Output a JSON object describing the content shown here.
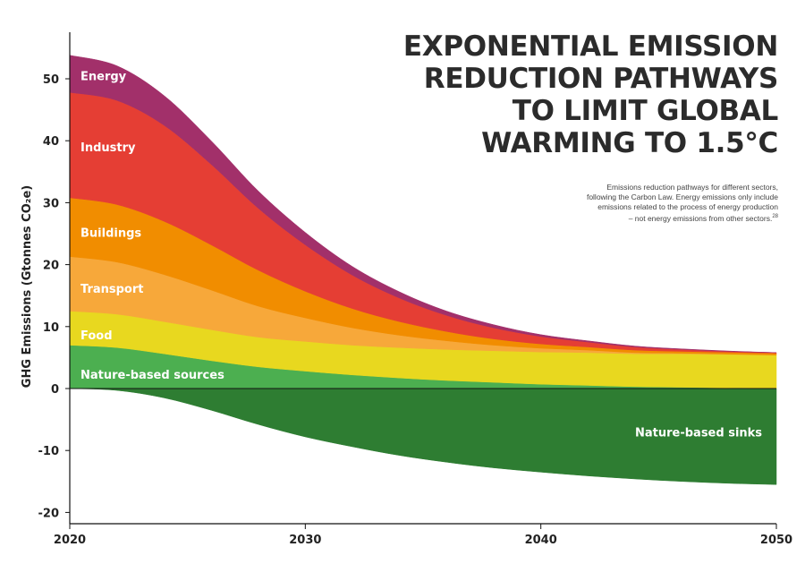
{
  "title_lines": [
    "EXPONENTIAL EMISSION",
    "REDUCTION PATHWAYS",
    "TO LIMIT GLOBAL",
    "WARMING TO 1.5°C"
  ],
  "subtitle": {
    "lines": [
      "Emissions reduction pathways for different sectors,",
      "following the Carbon Law. Energy emissions only include",
      "emissions related to the process of energy production",
      "– not energy emissions from other sectors."
    ],
    "footnote": "28"
  },
  "chart_data": {
    "type": "area",
    "stacked": true,
    "ylabel": "GHG Emissions (Gtonnes CO₂e)",
    "xlabel": "",
    "xlim": [
      2020,
      2050
    ],
    "ylim": [
      -20,
      55
    ],
    "x_ticks": [
      2020,
      2030,
      2040,
      2050
    ],
    "y_ticks": [
      -20,
      -10,
      0,
      10,
      20,
      30,
      40,
      50
    ],
    "x": [
      2020,
      2022,
      2024,
      2026,
      2028,
      2030,
      2032,
      2034,
      2036,
      2038,
      2040,
      2042,
      2044,
      2046,
      2048,
      2050
    ],
    "series": [
      {
        "name": "Nature-based sources",
        "color": "#4caf50",
        "values": [
          7.0,
          6.6,
          5.6,
          4.5,
          3.5,
          2.8,
          2.2,
          1.7,
          1.3,
          1.0,
          0.7,
          0.5,
          0.3,
          0.2,
          0.1,
          0.0
        ]
      },
      {
        "name": "Food",
        "color": "#e8d81f",
        "values": [
          5.5,
          5.4,
          5.2,
          5.0,
          4.8,
          4.8,
          4.8,
          4.9,
          5.0,
          5.1,
          5.2,
          5.3,
          5.3,
          5.4,
          5.4,
          5.4
        ]
      },
      {
        "name": "Transport",
        "color": "#f7a83a",
        "values": [
          8.8,
          8.4,
          7.6,
          6.4,
          5.0,
          3.8,
          2.8,
          2.0,
          1.4,
          0.9,
          0.6,
          0.4,
          0.2,
          0.1,
          0.05,
          0.0
        ]
      },
      {
        "name": "Buildings",
        "color": "#f18d00",
        "values": [
          9.5,
          9.3,
          8.6,
          7.3,
          5.8,
          4.3,
          3.1,
          2.2,
          1.5,
          1.0,
          0.7,
          0.5,
          0.4,
          0.3,
          0.3,
          0.3
        ]
      },
      {
        "name": "Industry",
        "color": "#e53e34",
        "values": [
          17.0,
          16.8,
          15.5,
          13.0,
          10.0,
          7.5,
          5.4,
          3.8,
          2.6,
          1.8,
          1.2,
          0.8,
          0.5,
          0.3,
          0.15,
          0.1
        ]
      },
      {
        "name": "Energy",
        "color": "#a2306a",
        "values": [
          6.0,
          5.6,
          4.8,
          3.8,
          2.8,
          2.0,
          1.4,
          1.0,
          0.7,
          0.5,
          0.3,
          0.2,
          0.15,
          0.1,
          0.05,
          0.0
        ]
      },
      {
        "name": "Nature-based sinks",
        "color": "#2e7d32",
        "values": [
          0.0,
          -0.3,
          -1.5,
          -3.5,
          -5.8,
          -7.8,
          -9.4,
          -10.8,
          -11.9,
          -12.8,
          -13.5,
          -14.1,
          -14.6,
          -15.0,
          -15.3,
          -15.5
        ]
      }
    ]
  }
}
